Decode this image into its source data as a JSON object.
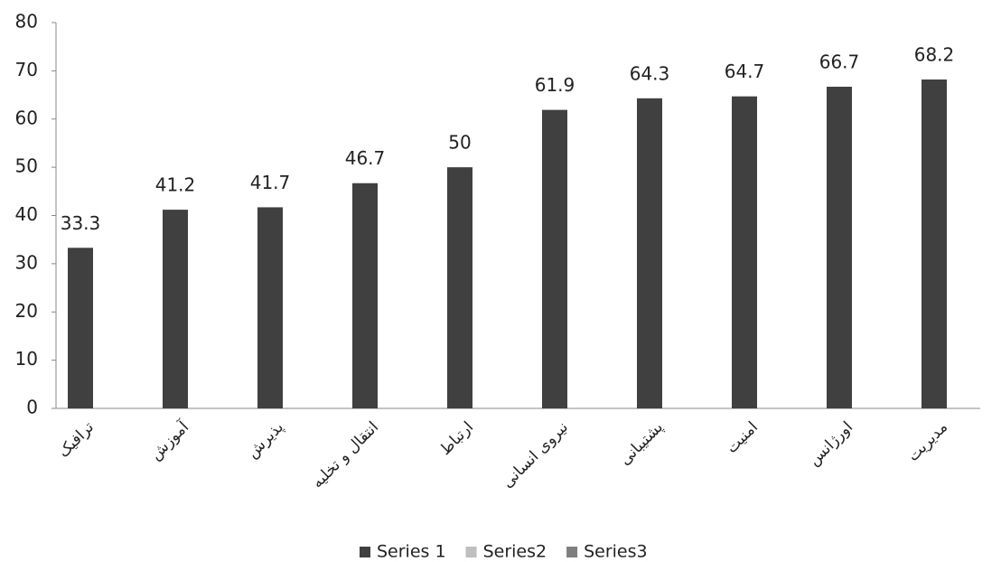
{
  "chart_data": {
    "type": "bar",
    "categories": [
      "ترافیک",
      "آموزش",
      "پذیرش",
      "انتقال و تخلیه",
      "ارتباط",
      "نیروی انسانی",
      "پشتیبانی",
      "امنیت",
      "اورژانس",
      "مدیریت"
    ],
    "series": [
      {
        "name": "Series 1",
        "color": "#404040",
        "values": [
          33.3,
          41.2,
          41.7,
          46.7,
          50,
          61.9,
          64.3,
          64.7,
          66.7,
          68.2
        ]
      },
      {
        "name": "Series2",
        "color": "#bfbfbf",
        "values": [
          null,
          null,
          null,
          null,
          null,
          null,
          null,
          null,
          null,
          null
        ]
      },
      {
        "name": "Series3",
        "color": "#7f7f7f",
        "values": [
          null,
          null,
          null,
          null,
          null,
          null,
          null,
          null,
          null,
          null
        ]
      }
    ],
    "ylim": [
      0,
      80
    ],
    "yticks": [
      0,
      10,
      20,
      30,
      40,
      50,
      60,
      70,
      80
    ],
    "grid": false,
    "data_labels": true,
    "legend": "bottom"
  }
}
